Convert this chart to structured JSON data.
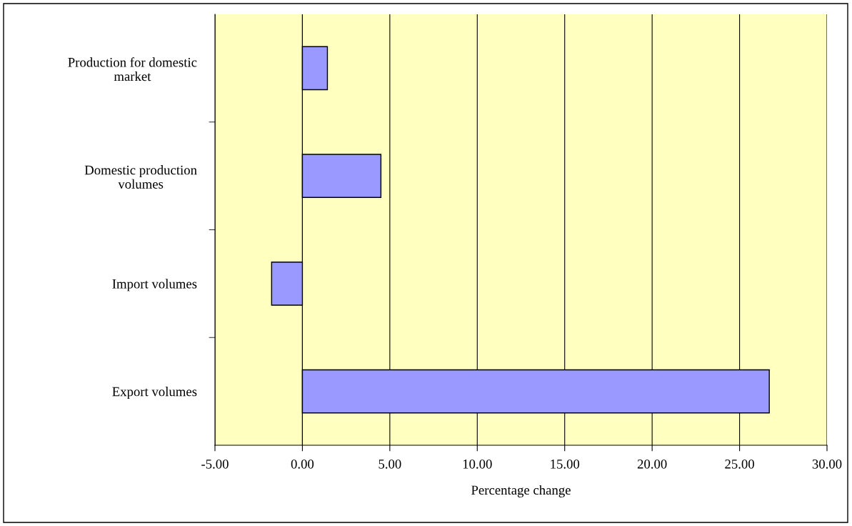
{
  "chart_data": {
    "type": "bar",
    "orientation": "horizontal",
    "xlabel": "Percentage change",
    "categories": [
      "Production for domestic market",
      "Domestic production volumes",
      "Import volumes",
      "Export volumes"
    ],
    "values": [
      1.43,
      4.49,
      -1.76,
      26.7
    ],
    "color": "#9999ff",
    "xlim": [
      -5,
      30
    ],
    "xticks": [
      {
        "value": -5,
        "label": "-5.00"
      },
      {
        "value": 0,
        "label": "0.00"
      },
      {
        "value": 5,
        "label": "5.00"
      },
      {
        "value": 10,
        "label": "10.00"
      },
      {
        "value": 15,
        "label": "15.00"
      },
      {
        "value": 20,
        "label": "20.00"
      },
      {
        "value": 25,
        "label": "25.00"
      },
      {
        "value": 30,
        "label": "30.00"
      }
    ],
    "grid": "x",
    "legend": false
  }
}
